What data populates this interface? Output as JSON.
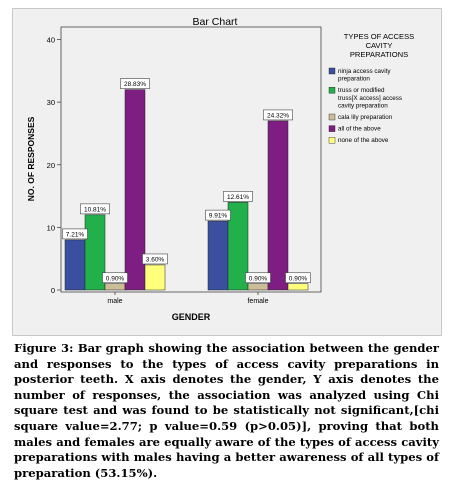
{
  "chart_data": {
    "type": "bar",
    "title": "Bar Chart",
    "xlabel": "GENDER",
    "ylabel": "NO. OF RESPONSES",
    "ylim": [
      0,
      42
    ],
    "yticks": [
      0,
      10,
      20,
      30,
      40
    ],
    "grid": false,
    "legend_position": "right",
    "legend_title": "TYPES OF ACCESS CAVITY PREPARATIONS",
    "categories": [
      "male",
      "female"
    ],
    "series": [
      {
        "name": "ninja access cavity preparation",
        "color": "#3a4fa0",
        "values": [
          8,
          11
        ],
        "labels": [
          "7.21%",
          "9.91%"
        ]
      },
      {
        "name": "truss or modified truss[X access] access cavity preparation",
        "color": "#22b04b",
        "values": [
          12,
          14
        ],
        "labels": [
          "10.81%",
          "12.61%"
        ]
      },
      {
        "name": "cala lily preparation",
        "color": "#cbbe96",
        "values": [
          1,
          1
        ],
        "labels": [
          "0.90%",
          "0.90%"
        ]
      },
      {
        "name": "all of the above",
        "color": "#7e1e82",
        "values": [
          32,
          27
        ],
        "labels": [
          "28.83%",
          "24.32%"
        ]
      },
      {
        "name": "none of the above",
        "color": "#ffff7a",
        "values": [
          4,
          1
        ],
        "labels": [
          "3.60%",
          "0.90%"
        ]
      }
    ]
  },
  "caption": {
    "label": "Figure 3:",
    "text": "Bar graph showing the association between the gender and responses to the types of access cavity preparations in posterior teeth. X axis denotes the gender, Y axis denotes the number of responses, the association was analyzed using Chi square test and was found to be statistically not significant,[chi square value=2.77; p value=0.59 (p>0.05)], proving that both males and females are equally aware of the types of access cavity preparations with males having a better awareness of all types of preparation (53.15%)."
  }
}
